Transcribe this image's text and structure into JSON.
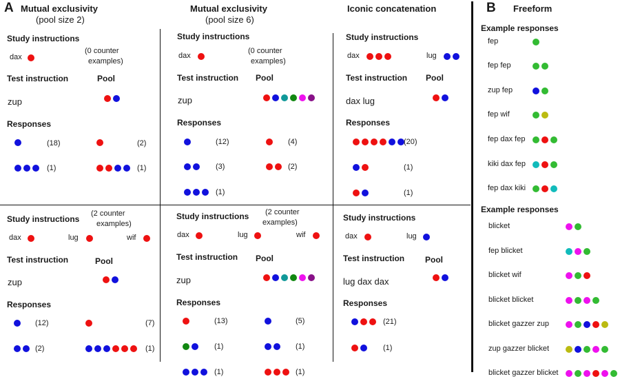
{
  "colors": {
    "red": "#ee1111",
    "blue": "#1111dd",
    "teal": "#119999",
    "green": "#118811",
    "magenta": "#ee11ee",
    "purple": "#881188",
    "lgreen": "#33bb33",
    "olive": "#bbbb11",
    "cyan": "#11bbbb"
  },
  "panel_a": {
    "letter": "A",
    "columns": [
      {
        "title": "Mutual exclusivity",
        "subtitle": "(pool size 2)"
      },
      {
        "title": "Mutual exclusivity",
        "subtitle": "(pool size 6)"
      },
      {
        "title": "Iconic concatenation"
      }
    ],
    "labels": {
      "study": "Study instructions",
      "test": "Test instruction",
      "pool": "Pool",
      "responses": "Responses"
    },
    "notes": {
      "zero_a": "(0 counter",
      "zero_b": "examples)",
      "two_a": "(2 counter",
      "two_b": "examples)"
    },
    "words": {
      "dax": "dax",
      "lug": "lug",
      "wif": "wif",
      "zup": "zup",
      "dax_lug": "dax lug",
      "lug_dax_dax": "lug dax dax"
    },
    "counts": {
      "c18": "(18)",
      "c2": "(2)",
      "c1": "(1)",
      "c12": "(12)",
      "c4": "(4)",
      "c3": "(3)",
      "c20": "(20)",
      "c7": "(7)",
      "c13": "(13)",
      "c5": "(5)",
      "c21": "(21)"
    }
  },
  "panel_b": {
    "letter": "B",
    "title": "Freeform",
    "section_label": "Example responses",
    "set1": [
      "fep",
      "fep fep",
      "zup fep",
      "fep wif",
      "fep dax fep",
      "kiki dax fep",
      "fep dax kiki"
    ],
    "set2": [
      "blicket",
      "fep blicket",
      "blicket wif",
      "blicket blicket",
      "blicket gazzer zup",
      "zup gazzer blicket",
      "blicket gazzer blicket"
    ]
  }
}
